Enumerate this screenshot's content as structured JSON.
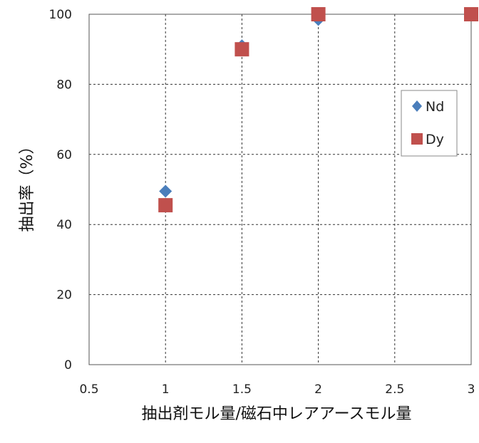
{
  "chart_data": {
    "type": "scatter",
    "xlabel": "抽出剤モル量/磁石中レアアースモル量",
    "ylabel": "抽出率（%）",
    "xlim": [
      0.5,
      3
    ],
    "ylim": [
      0,
      100
    ],
    "x_ticks": [
      "0.5",
      "1",
      "1.5",
      "2",
      "2.5",
      "3"
    ],
    "y_ticks": [
      "0",
      "20",
      "40",
      "60",
      "80",
      "100"
    ],
    "grid": true,
    "legend_position": "right",
    "series": [
      {
        "name": "Nd",
        "marker": "diamond",
        "color": "#4a7ebb",
        "points": [
          {
            "x": 1,
            "y": 49.5
          },
          {
            "x": 1.5,
            "y": 91
          },
          {
            "x": 2,
            "y": 98.5
          },
          {
            "x": 3,
            "y": 100
          }
        ]
      },
      {
        "name": "Dy",
        "marker": "square",
        "color": "#c0504d",
        "points": [
          {
            "x": 1,
            "y": 45.5
          },
          {
            "x": 1.5,
            "y": 90
          },
          {
            "x": 2,
            "y": 100
          },
          {
            "x": 3,
            "y": 100
          }
        ]
      }
    ]
  }
}
